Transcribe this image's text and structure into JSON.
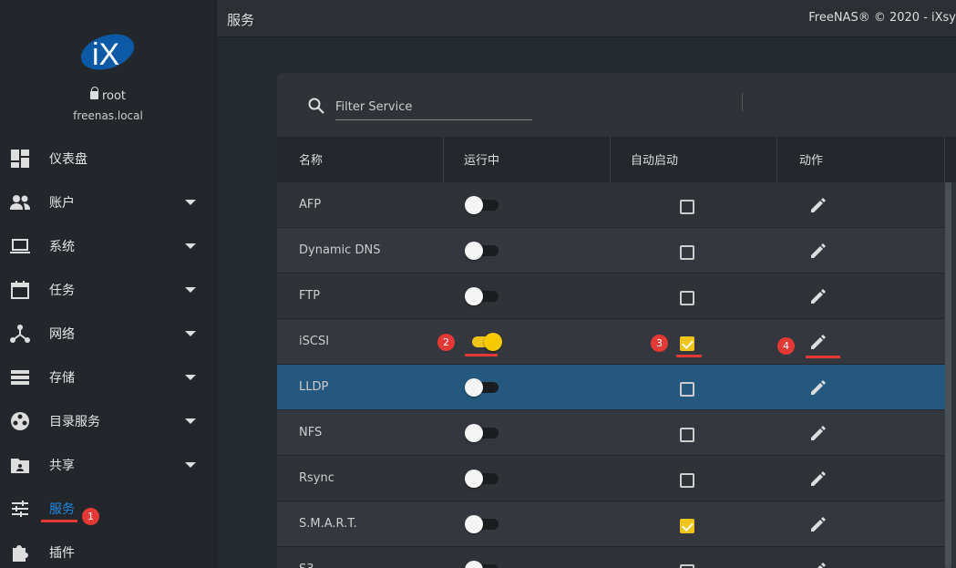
{
  "user": {
    "name": "root",
    "host": "freenas.local"
  },
  "nav": [
    {
      "label": "仪表盘",
      "icon": "dashboard-icon",
      "caret": false
    },
    {
      "label": "账户",
      "icon": "accounts-icon",
      "caret": true
    },
    {
      "label": "系统",
      "icon": "laptop-icon",
      "caret": true
    },
    {
      "label": "任务",
      "icon": "calendar-icon",
      "caret": true
    },
    {
      "label": "网络",
      "icon": "network-icon",
      "caret": true
    },
    {
      "label": "存储",
      "icon": "storage-icon",
      "caret": true
    },
    {
      "label": "目录服务",
      "icon": "directory-icon",
      "caret": true
    },
    {
      "label": "共享",
      "icon": "share-folder-icon",
      "caret": true
    },
    {
      "label": "服务",
      "icon": "sliders-icon",
      "caret": false,
      "active": true
    },
    {
      "label": "插件",
      "icon": "puzzle-icon",
      "caret": false
    }
  ],
  "topbar": {
    "title": "服务",
    "copyright": "FreeNAS® © 2020 - iXsy"
  },
  "filter": {
    "placeholder": "Filter Service"
  },
  "columns": [
    "名称",
    "运行中",
    "自动启动",
    "动作"
  ],
  "rows": [
    {
      "name": "AFP",
      "running": false,
      "autostart": false
    },
    {
      "name": "Dynamic DNS",
      "running": false,
      "autostart": false
    },
    {
      "name": "FTP",
      "running": false,
      "autostart": false
    },
    {
      "name": "iSCSI",
      "running": true,
      "autostart": true
    },
    {
      "name": "LLDP",
      "running": false,
      "autostart": false,
      "selected": true
    },
    {
      "name": "NFS",
      "running": false,
      "autostart": false
    },
    {
      "name": "Rsync",
      "running": false,
      "autostart": false
    },
    {
      "name": "S.M.A.R.T.",
      "running": false,
      "autostart": true
    },
    {
      "name": "S3",
      "running": false,
      "autostart": false
    }
  ],
  "annotations": [
    "1",
    "2",
    "3",
    "4"
  ],
  "colors": {
    "accent": "#1e88e5",
    "selected_row": "#24587e",
    "toggle_on": "#f0c419",
    "annotation": "#e53935"
  }
}
